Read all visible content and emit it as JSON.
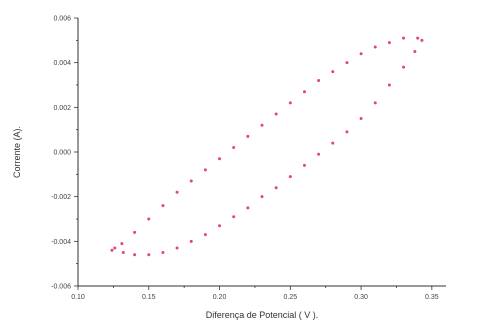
{
  "chart_data": {
    "type": "scatter",
    "title": "",
    "xlabel": "Diferença de Potencial ( V ).",
    "ylabel": "Corrente  (A).",
    "xlim": [
      0.1,
      0.36
    ],
    "ylim": [
      -0.006,
      0.006
    ],
    "xticks": [
      "0.10",
      "0.15",
      "0.20",
      "0.25",
      "0.30",
      "0.35"
    ],
    "yticks": [
      "0.006",
      "0.004",
      "0.002",
      "0.000",
      "-0.002",
      "-0.004",
      "-0.006"
    ],
    "grid": false,
    "marker_color": "#e0457b",
    "series": [
      {
        "x": [
          0.124,
          0.131,
          0.14,
          0.15,
          0.16,
          0.17,
          0.18,
          0.19,
          0.2,
          0.21,
          0.22,
          0.23,
          0.24,
          0.25,
          0.26,
          0.27,
          0.28,
          0.29,
          0.3,
          0.31,
          0.32,
          0.33,
          0.34,
          0.343,
          0.338,
          0.33,
          0.32,
          0.31,
          0.3,
          0.29,
          0.28,
          0.27,
          0.26,
          0.25,
          0.24,
          0.23,
          0.22,
          0.21,
          0.2,
          0.19,
          0.18,
          0.17,
          0.16,
          0.15,
          0.14,
          0.132,
          0.126
        ],
        "y": [
          -0.0044,
          -0.0041,
          -0.0036,
          -0.003,
          -0.0024,
          -0.0018,
          -0.0013,
          -0.0008,
          -0.0003,
          0.0002,
          0.0007,
          0.0012,
          0.0017,
          0.0022,
          0.0027,
          0.0032,
          0.0036,
          0.004,
          0.0044,
          0.0047,
          0.0049,
          0.0051,
          0.0051,
          0.005,
          0.0045,
          0.0038,
          0.003,
          0.0022,
          0.0015,
          0.0009,
          0.0004,
          -0.0001,
          -0.0006,
          -0.0011,
          -0.0016,
          -0.002,
          -0.0025,
          -0.0029,
          -0.0033,
          -0.0037,
          -0.004,
          -0.0043,
          -0.0045,
          -0.0046,
          -0.0046,
          -0.0045,
          -0.0043
        ]
      }
    ]
  }
}
